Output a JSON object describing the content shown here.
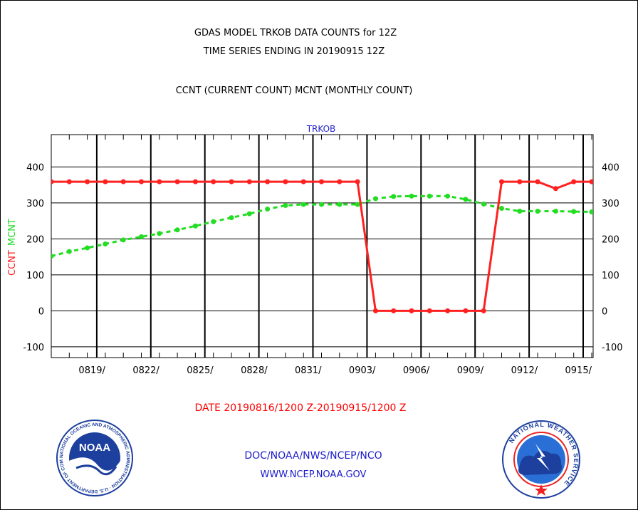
{
  "header": {
    "title_line1": "GDAS MODEL TRKOB DATA COUNTS for 12Z",
    "title_line2": "TIME SERIES ENDING IN 20190915 12Z",
    "subtitle": "CCNT (CURRENT COUNT) MCNT (MONTHLY COUNT)"
  },
  "footer": {
    "date_range": "DATE 20190816/1200 Z-20190915/1200 Z",
    "org_line": "DOC/NOAA/NWS/NCEP/NCO",
    "url_line": "WWW.NCEP.NOAA.GOV",
    "noaa_logo_text": "NOAA",
    "noaa_ring_text": "NATIONAL OCEANIC AND ATMOSPHERIC ADMINISTRATION · U.S. DEPARTMENT OF COMMERCE",
    "nws_ring_text": "NATIONAL WEATHER SERVICE"
  },
  "colors": {
    "ccnt": "#ff2020",
    "mcnt": "#22dd22",
    "panel_title": "#2222cc",
    "date_text": "#ff0000",
    "link_text": "#1a1acc"
  },
  "chart_data": {
    "type": "line",
    "panel_title": "TRKOB",
    "ylabel_ccnt": "CCNT",
    "ylabel_mcnt": "MCNT",
    "ylim": [
      -130,
      490
    ],
    "yticks": [
      -100,
      0,
      100,
      200,
      300,
      400
    ],
    "ytick_labels": [
      "-100",
      "0",
      "100",
      "200",
      "300",
      "400"
    ],
    "grid": true,
    "x_start": "20190816",
    "x_end": "20190915",
    "x_tick_labels": [
      "0819/",
      "0822/",
      "0825/",
      "0828/",
      "0831/",
      "0903/",
      "0906/",
      "0909/",
      "0912/",
      "0915/"
    ],
    "x_major_dates": [
      "0819",
      "0822",
      "0825",
      "0828",
      "0831",
      "0903",
      "0906",
      "0909",
      "0912",
      "0915"
    ],
    "x": [
      "0816",
      "0817",
      "0818",
      "0819",
      "0820",
      "0821",
      "0822",
      "0823",
      "0824",
      "0825",
      "0826",
      "0827",
      "0828",
      "0829",
      "0830",
      "0831",
      "0901",
      "0902",
      "0903",
      "0904",
      "0905",
      "0906",
      "0907",
      "0908",
      "0909",
      "0910",
      "0911",
      "0912",
      "0913",
      "0914",
      "0915"
    ],
    "series": [
      {
        "name": "CCNT",
        "values": [
          359,
          359,
          359,
          359,
          359,
          359,
          359,
          359,
          359,
          359,
          359,
          359,
          359,
          359,
          359,
          359,
          359,
          359,
          0,
          0,
          0,
          0,
          0,
          0,
          0,
          359,
          359,
          359,
          340,
          359,
          359
        ]
      },
      {
        "name": "MCNT",
        "values": [
          152,
          165,
          175,
          186,
          197,
          206,
          215,
          225,
          236,
          248,
          259,
          270,
          283,
          293,
          296,
          296,
          296,
          296,
          312,
          318,
          319,
          319,
          319,
          310,
          297,
          285,
          277,
          277,
          277,
          276,
          275
        ]
      }
    ]
  }
}
